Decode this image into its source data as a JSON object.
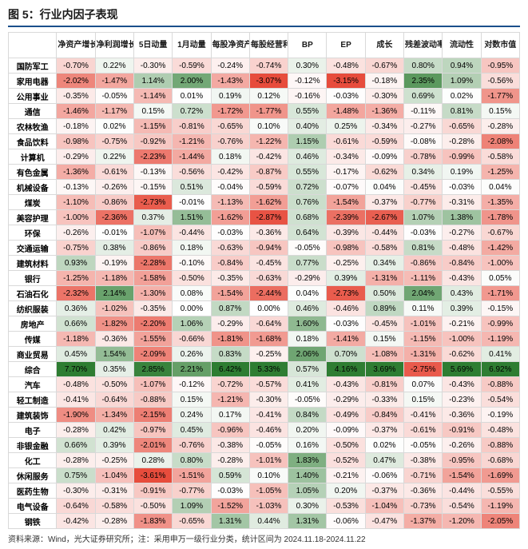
{
  "title": "图 5：行业内因子表现",
  "footer_note": "资料来源：Wind，光大证券研究所；注：采用申万一级行业分类，统计区间为 2024.11.18-2024.11.22",
  "gradient": {
    "neg_color": "#e74c3c",
    "pos_color": "#2e7d32",
    "mid_color": "#ffffff",
    "neg_clip": -3.0,
    "pos_clip": 3.0
  },
  "columns": [
    "净资产增长率",
    "净利润增长率",
    "5日动量",
    "1月动量",
    "每股净资产",
    "每股经营利润TTM",
    "BP",
    "EP",
    "成长",
    "残差波动率",
    "流动性",
    "对数市值"
  ],
  "rows": [
    {
      "label": "国防军工",
      "v": [
        -0.7,
        0.22,
        -0.3,
        -0.59,
        -0.24,
        -0.74,
        0.3,
        -0.48,
        -0.67,
        0.8,
        0.94,
        -0.95
      ]
    },
    {
      "label": "家用电器",
      "v": [
        -2.02,
        -1.47,
        1.14,
        2.0,
        -1.43,
        -3.07,
        -0.12,
        -3.15,
        -0.18,
        2.35,
        1.09,
        -0.56
      ]
    },
    {
      "label": "公用事业",
      "v": [
        -0.35,
        -0.05,
        -1.14,
        0.01,
        0.19,
        0.12,
        -0.16,
        -0.03,
        -0.3,
        0.69,
        0.02,
        -1.77
      ]
    },
    {
      "label": "通信",
      "v": [
        -1.46,
        -1.17,
        0.15,
        0.72,
        -1.72,
        -1.77,
        0.55,
        -1.48,
        -1.36,
        -0.11,
        0.81,
        0.15
      ]
    },
    {
      "label": "农林牧渔",
      "v": [
        -0.18,
        0.02,
        -1.15,
        -0.81,
        -0.65,
        0.1,
        0.4,
        0.25,
        -0.34,
        -0.27,
        -0.65,
        -0.28
      ]
    },
    {
      "label": "食品饮料",
      "v": [
        -0.98,
        -0.75,
        -0.92,
        -1.21,
        -0.76,
        -1.22,
        1.15,
        -0.61,
        -0.59,
        -0.08,
        -0.28,
        -2.08
      ]
    },
    {
      "label": "计算机",
      "v": [
        -0.29,
        0.22,
        -2.23,
        -1.44,
        0.18,
        -0.42,
        0.46,
        -0.34,
        -0.09,
        -0.78,
        -0.99,
        -0.58
      ]
    },
    {
      "label": "有色金属",
      "v": [
        -1.36,
        -0.61,
        -0.13,
        -0.56,
        -0.42,
        -0.87,
        0.55,
        -0.17,
        -0.62,
        0.34,
        0.19,
        -1.25
      ]
    },
    {
      "label": "机械设备",
      "v": [
        -0.13,
        -0.26,
        -0.15,
        0.51,
        -0.04,
        -0.59,
        0.72,
        -0.07,
        0.04,
        -0.45,
        -0.03,
        0.04
      ]
    },
    {
      "label": "煤炭",
      "v": [
        -1.1,
        -0.86,
        -2.73,
        -0.01,
        -1.13,
        -1.62,
        0.76,
        -1.54,
        -0.37,
        -0.77,
        -0.31,
        -1.35
      ]
    },
    {
      "label": "美容护理",
      "v": [
        -1.0,
        -2.36,
        0.37,
        1.51,
        -1.62,
        -2.87,
        0.68,
        -2.39,
        -2.67,
        1.07,
        1.38,
        -1.78
      ]
    },
    {
      "label": "环保",
      "v": [
        -0.26,
        -0.01,
        -1.07,
        -0.44,
        -0.03,
        -0.36,
        0.64,
        -0.39,
        -0.44,
        -0.03,
        -0.27,
        -0.67
      ]
    },
    {
      "label": "交通运输",
      "v": [
        -0.75,
        0.38,
        -0.86,
        0.18,
        -0.63,
        -0.94,
        -0.05,
        -0.98,
        -0.58,
        0.81,
        -0.48,
        -1.42
      ]
    },
    {
      "label": "建筑材料",
      "v": [
        0.93,
        -0.19,
        -2.28,
        -0.1,
        -0.84,
        -0.45,
        0.77,
        -0.25,
        0.34,
        -0.86,
        -0.84,
        -1.0
      ]
    },
    {
      "label": "银行",
      "v": [
        -1.25,
        -1.18,
        -1.58,
        -0.5,
        -0.35,
        -0.63,
        -0.29,
        0.39,
        -1.31,
        -1.11,
        -0.43,
        0.05
      ]
    },
    {
      "label": "石油石化",
      "v": [
        -2.32,
        2.14,
        -1.3,
        0.08,
        -1.54,
        -2.44,
        0.04,
        -2.73,
        0.5,
        2.04,
        0.43,
        -1.71
      ]
    },
    {
      "label": "纺织服装",
      "v": [
        0.36,
        -1.02,
        -0.35,
        0.0,
        0.87,
        0.0,
        0.46,
        -0.46,
        0.89,
        0.11,
        0.39,
        -0.15
      ]
    },
    {
      "label": "房地产",
      "v": [
        0.66,
        -1.82,
        -2.2,
        1.06,
        -0.29,
        -0.64,
        1.6,
        -0.03,
        -0.45,
        -1.01,
        -0.21,
        -0.99
      ]
    },
    {
      "label": "传媒",
      "v": [
        -1.18,
        -0.36,
        -1.55,
        -0.66,
        -1.81,
        -1.68,
        0.18,
        -1.41,
        0.15,
        -1.15,
        -1.0,
        -1.19
      ]
    },
    {
      "label": "商业贸易",
      "v": [
        0.45,
        1.54,
        -2.09,
        0.26,
        0.83,
        -0.25,
        2.06,
        0.7,
        -1.08,
        -1.31,
        -0.62,
        0.41
      ]
    },
    {
      "label": "综合",
      "v": [
        7.7,
        0.35,
        2.85,
        2.21,
        6.42,
        5.33,
        0.57,
        4.16,
        3.69,
        -2.75,
        5.69,
        6.92
      ]
    },
    {
      "label": "汽车",
      "v": [
        -0.48,
        -0.5,
        -1.07,
        -0.12,
        -0.72,
        -0.57,
        0.41,
        -0.43,
        -0.81,
        0.07,
        -0.43,
        -0.88
      ]
    },
    {
      "label": "轻工制造",
      "v": [
        -0.41,
        -0.64,
        -0.88,
        0.15,
        -1.21,
        -0.3,
        -0.05,
        -0.29,
        -0.33,
        0.15,
        -0.23,
        -0.54
      ]
    },
    {
      "label": "建筑装饰",
      "v": [
        -1.9,
        -1.34,
        -2.15,
        0.24,
        0.17,
        -0.41,
        0.84,
        -0.49,
        -0.84,
        -0.41,
        -0.36,
        -0.19
      ]
    },
    {
      "label": "电子",
      "v": [
        -0.28,
        0.42,
        -0.97,
        0.45,
        -0.96,
        -0.46,
        0.2,
        -0.09,
        -0.37,
        -0.61,
        -0.91,
        -0.48
      ]
    },
    {
      "label": "非银金融",
      "v": [
        0.66,
        0.39,
        -2.01,
        -0.76,
        -0.38,
        -0.05,
        0.16,
        -0.5,
        0.02,
        -0.05,
        -0.26,
        -0.88
      ]
    },
    {
      "label": "化工",
      "v": [
        -0.28,
        -0.25,
        0.28,
        0.8,
        -0.28,
        -1.01,
        1.83,
        -0.52,
        0.47,
        -0.38,
        -0.95,
        -0.68
      ]
    },
    {
      "label": "休闲服务",
      "v": [
        0.75,
        -1.04,
        -3.61,
        -1.51,
        0.59,
        0.1,
        1.4,
        -0.21,
        -0.06,
        -0.71,
        -1.54,
        -1.69
      ]
    },
    {
      "label": "医药生物",
      "v": [
        -0.3,
        -0.31,
        -0.91,
        -0.77,
        -0.03,
        -1.05,
        1.05,
        0.2,
        -0.37,
        -0.36,
        -0.44,
        -0.55
      ]
    },
    {
      "label": "电气设备",
      "v": [
        -0.64,
        -0.58,
        -0.5,
        1.09,
        -1.52,
        -1.03,
        0.3,
        -0.53,
        -1.04,
        -0.73,
        -0.54,
        -1.19
      ]
    },
    {
      "label": "钢铁",
      "v": [
        -0.42,
        -0.28,
        -1.83,
        -0.65,
        1.31,
        0.44,
        1.31,
        -0.06,
        -0.47,
        -1.37,
        -1.2,
        -2.05
      ]
    }
  ],
  "styling": {
    "title_fontsize": 14,
    "cell_fontsize": 10,
    "header_fontweight": "700",
    "border_color": "#d9d9d9",
    "accent_rule_color": "#1a4f8b",
    "font_family": "Microsoft YaHei"
  }
}
